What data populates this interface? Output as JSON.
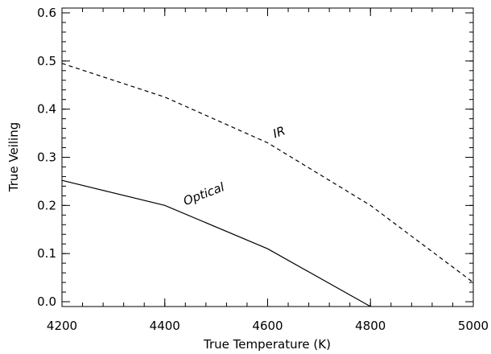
{
  "chart_data": {
    "type": "line",
    "xlabel": "True Temperature (K)",
    "ylabel": "True Veiling",
    "xlim": [
      4200,
      5000
    ],
    "ylim": [
      -0.01,
      0.61
    ],
    "x_ticks": [
      4200,
      4400,
      4600,
      4800,
      5000
    ],
    "x_tick_labels": [
      "4200",
      "4400",
      "4600",
      "4800",
      "5000"
    ],
    "y_ticks": [
      0.0,
      0.1,
      0.2,
      0.3,
      0.4,
      0.5,
      0.6
    ],
    "y_tick_labels": [
      "0.0",
      "0.1",
      "0.2",
      "0.3",
      "0.4",
      "0.5",
      "0.6"
    ],
    "grid": false,
    "series": [
      {
        "name": "IR",
        "line_style": "dashed",
        "color": "#000000",
        "x": [
          4200,
          4400,
          4600,
          4800,
          5000
        ],
        "y": [
          0.495,
          0.425,
          0.33,
          0.2,
          0.04
        ]
      },
      {
        "name": "Optical",
        "line_style": "solid",
        "color": "#000000",
        "x": [
          4200,
          4400,
          4600,
          4800
        ],
        "y": [
          0.252,
          0.2,
          0.11,
          -0.01
        ]
      }
    ],
    "annotations": [
      {
        "text": "IR",
        "x": 4614,
        "y": 0.34,
        "angle": -20
      },
      {
        "text": "Optical",
        "x": 4440,
        "y": 0.2,
        "angle": -21
      }
    ]
  }
}
